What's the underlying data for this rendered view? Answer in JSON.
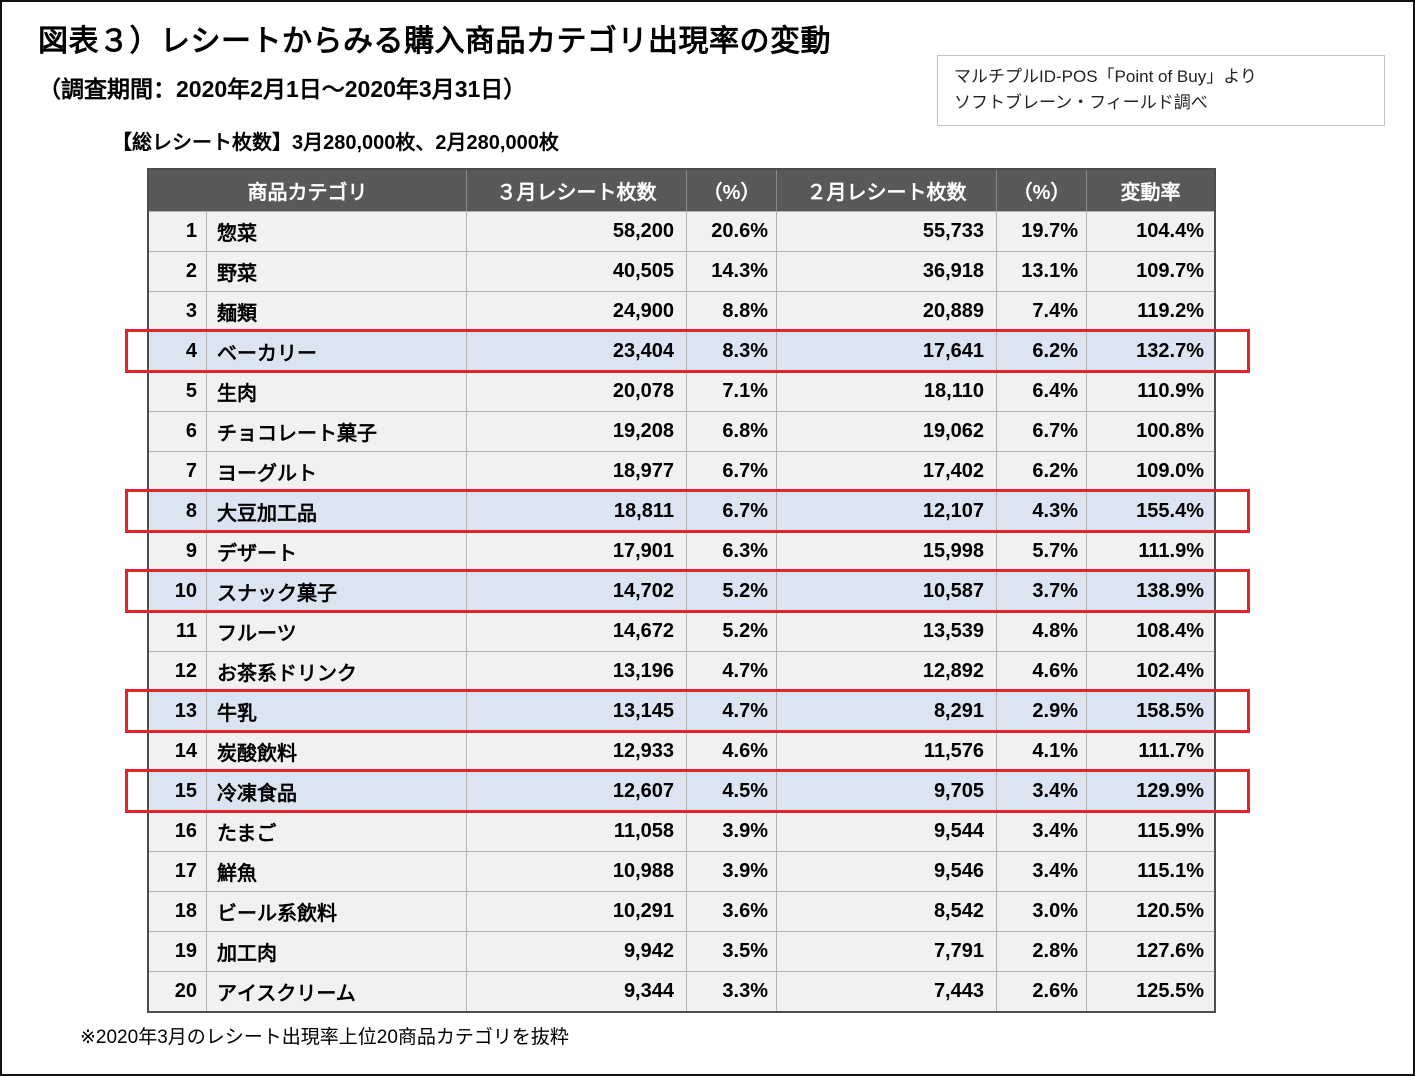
{
  "page": {
    "title": "図表３）レシートからみる購入商品カテゴリ出現率の変動",
    "subtitle": "（調査期間：2020年2月1日～2020年3月31日）",
    "source_line1": "マルチプルID-POS「Point of Buy」より",
    "source_line2": "ソフトブレーン・フィールド調べ",
    "receipt_note": "【総レシート枚数】3月280,000枚、2月280,000枚",
    "footnote": "※2020年3月のレシート出現率上位20商品カテゴリを抜粋"
  },
  "colors": {
    "header_bg": "#595959",
    "row_bg": "#f1f1f1",
    "highlight_row_bg": "#dbe5f1",
    "highlight_border": "#e3242b"
  },
  "chart_data": {
    "type": "table",
    "title": "図表３）レシートからみる購入商品カテゴリ出現率の変動",
    "columns": [
      "商品カテゴリ",
      "３月レシート枚数",
      "（%）",
      "２月レシート枚数",
      "（%）",
      "変動率"
    ],
    "highlighted_ranks": [
      4,
      8,
      10,
      13,
      15
    ],
    "rows": [
      {
        "rank": "1",
        "category": "惣菜",
        "mar_count": "58,200",
        "mar_pct": "20.6%",
        "feb_count": "55,733",
        "feb_pct": "19.7%",
        "change": "104.4%",
        "highlighted": false
      },
      {
        "rank": "2",
        "category": "野菜",
        "mar_count": "40,505",
        "mar_pct": "14.3%",
        "feb_count": "36,918",
        "feb_pct": "13.1%",
        "change": "109.7%",
        "highlighted": false
      },
      {
        "rank": "3",
        "category": "麺類",
        "mar_count": "24,900",
        "mar_pct": "8.8%",
        "feb_count": "20,889",
        "feb_pct": "7.4%",
        "change": "119.2%",
        "highlighted": false
      },
      {
        "rank": "4",
        "category": "ベーカリー",
        "mar_count": "23,404",
        "mar_pct": "8.3%",
        "feb_count": "17,641",
        "feb_pct": "6.2%",
        "change": "132.7%",
        "highlighted": true
      },
      {
        "rank": "5",
        "category": "生肉",
        "mar_count": "20,078",
        "mar_pct": "7.1%",
        "feb_count": "18,110",
        "feb_pct": "6.4%",
        "change": "110.9%",
        "highlighted": false
      },
      {
        "rank": "6",
        "category": "チョコレート菓子",
        "mar_count": "19,208",
        "mar_pct": "6.8%",
        "feb_count": "19,062",
        "feb_pct": "6.7%",
        "change": "100.8%",
        "highlighted": false
      },
      {
        "rank": "7",
        "category": "ヨーグルト",
        "mar_count": "18,977",
        "mar_pct": "6.7%",
        "feb_count": "17,402",
        "feb_pct": "6.2%",
        "change": "109.0%",
        "highlighted": false
      },
      {
        "rank": "8",
        "category": "大豆加工品",
        "mar_count": "18,811",
        "mar_pct": "6.7%",
        "feb_count": "12,107",
        "feb_pct": "4.3%",
        "change": "155.4%",
        "highlighted": true
      },
      {
        "rank": "9",
        "category": "デザート",
        "mar_count": "17,901",
        "mar_pct": "6.3%",
        "feb_count": "15,998",
        "feb_pct": "5.7%",
        "change": "111.9%",
        "highlighted": false
      },
      {
        "rank": "10",
        "category": "スナック菓子",
        "mar_count": "14,702",
        "mar_pct": "5.2%",
        "feb_count": "10,587",
        "feb_pct": "3.7%",
        "change": "138.9%",
        "highlighted": true
      },
      {
        "rank": "11",
        "category": "フルーツ",
        "mar_count": "14,672",
        "mar_pct": "5.2%",
        "feb_count": "13,539",
        "feb_pct": "4.8%",
        "change": "108.4%",
        "highlighted": false
      },
      {
        "rank": "12",
        "category": "お茶系ドリンク",
        "mar_count": "13,196",
        "mar_pct": "4.7%",
        "feb_count": "12,892",
        "feb_pct": "4.6%",
        "change": "102.4%",
        "highlighted": false
      },
      {
        "rank": "13",
        "category": "牛乳",
        "mar_count": "13,145",
        "mar_pct": "4.7%",
        "feb_count": "8,291",
        "feb_pct": "2.9%",
        "change": "158.5%",
        "highlighted": true
      },
      {
        "rank": "14",
        "category": "炭酸飲料",
        "mar_count": "12,933",
        "mar_pct": "4.6%",
        "feb_count": "11,576",
        "feb_pct": "4.1%",
        "change": "111.7%",
        "highlighted": false
      },
      {
        "rank": "15",
        "category": "冷凍食品",
        "mar_count": "12,607",
        "mar_pct": "4.5%",
        "feb_count": "9,705",
        "feb_pct": "3.4%",
        "change": "129.9%",
        "highlighted": true
      },
      {
        "rank": "16",
        "category": "たまご",
        "mar_count": "11,058",
        "mar_pct": "3.9%",
        "feb_count": "9,544",
        "feb_pct": "3.4%",
        "change": "115.9%",
        "highlighted": false
      },
      {
        "rank": "17",
        "category": "鮮魚",
        "mar_count": "10,988",
        "mar_pct": "3.9%",
        "feb_count": "9,546",
        "feb_pct": "3.4%",
        "change": "115.1%",
        "highlighted": false
      },
      {
        "rank": "18",
        "category": "ビール系飲料",
        "mar_count": "10,291",
        "mar_pct": "3.6%",
        "feb_count": "8,542",
        "feb_pct": "3.0%",
        "change": "120.5%",
        "highlighted": false
      },
      {
        "rank": "19",
        "category": "加工肉",
        "mar_count": "9,942",
        "mar_pct": "3.5%",
        "feb_count": "7,791",
        "feb_pct": "2.8%",
        "change": "127.6%",
        "highlighted": false
      },
      {
        "rank": "20",
        "category": "アイスクリーム",
        "mar_count": "9,344",
        "mar_pct": "3.3%",
        "feb_count": "7,443",
        "feb_pct": "2.6%",
        "change": "125.5%",
        "highlighted": false
      }
    ]
  }
}
